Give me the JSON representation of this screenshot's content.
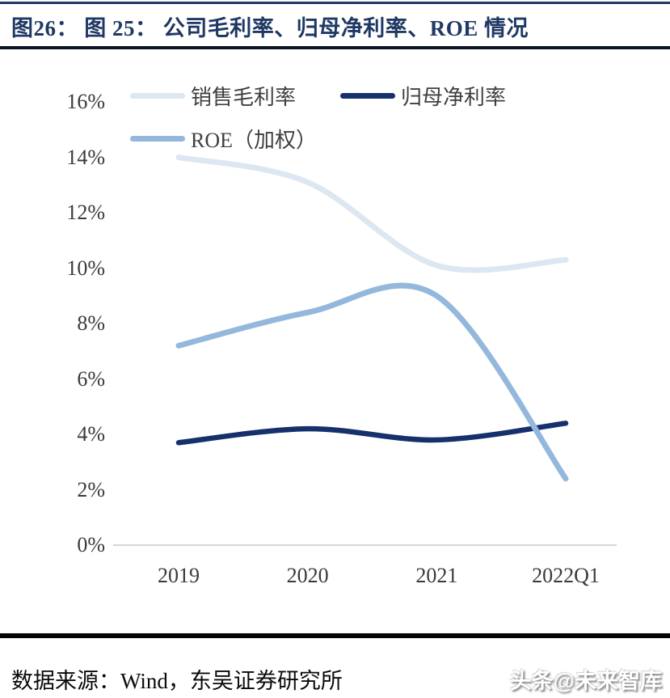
{
  "header": {
    "title": "图26：  图 25：  公司毛利率、归母净利率、ROE 情况"
  },
  "footer": {
    "source_label": "数据来源：Wind，东吴证券研究所",
    "watermark": "头条@未来智库"
  },
  "colors": {
    "title": "#1F3864",
    "header_rule_top": "#1F3864",
    "header_rule_bottom": "#0c1526",
    "footer_rule": "#050505",
    "axis_text": "#3a3a3a",
    "axis_line": "#c9c9c9",
    "gross_margin": "#dde7f2",
    "net_margin": "#15306b",
    "roe": "#93b8dc"
  },
  "chart_data": {
    "type": "line",
    "title": "公司毛利率、归母净利率、ROE 情况",
    "categories": [
      "2019",
      "2020",
      "2021",
      "2022Q1"
    ],
    "series": [
      {
        "name": "销售毛利率",
        "values": [
          14.0,
          13.1,
          10.1,
          10.3
        ],
        "color": "#dde7f2"
      },
      {
        "name": "归母净利率",
        "values": [
          3.7,
          4.2,
          3.8,
          4.4
        ],
        "color": "#15306b"
      },
      {
        "name": "ROE（加权）",
        "values": [
          7.2,
          8.4,
          9.0,
          2.4
        ],
        "color": "#93b8dc"
      }
    ],
    "ylim": [
      0,
      16
    ],
    "ytick_step": 2,
    "ytick_labels": [
      "0%",
      "2%",
      "4%",
      "6%",
      "8%",
      "10%",
      "12%",
      "14%",
      "16%"
    ],
    "xlabel": "",
    "ylabel": "",
    "grid": false,
    "smooth": true,
    "legend_position": "top-left",
    "legend_rows": [
      [
        "销售毛利率",
        "归母净利率"
      ],
      [
        "ROE（加权）"
      ]
    ]
  }
}
